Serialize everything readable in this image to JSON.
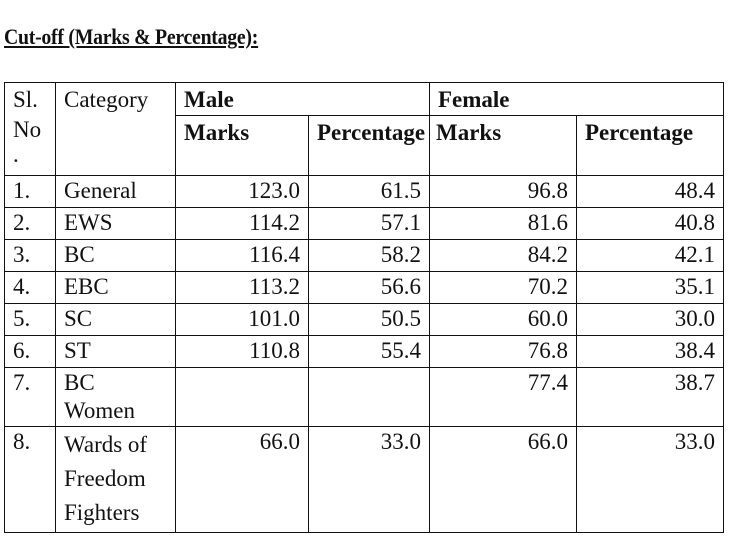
{
  "title": "Cut-off (Marks & Percentage):",
  "headers": {
    "sl_no": "Sl.\nNo\n.",
    "category": "Category",
    "male": "Male",
    "female": "Female",
    "marks": "Marks",
    "percentage": "Percentage"
  },
  "rows": [
    {
      "sl": "1.",
      "category": "General",
      "male_marks": "123.0",
      "male_pct": "61.5",
      "female_marks": "96.8",
      "female_pct": "48.4"
    },
    {
      "sl": "2.",
      "category": "EWS",
      "male_marks": "114.2",
      "male_pct": "57.1",
      "female_marks": "81.6",
      "female_pct": "40.8"
    },
    {
      "sl": "3.",
      "category": "BC",
      "male_marks": "116.4",
      "male_pct": "58.2",
      "female_marks": "84.2",
      "female_pct": "42.1"
    },
    {
      "sl": "4.",
      "category": "EBC",
      "male_marks": "113.2",
      "male_pct": "56.6",
      "female_marks": "70.2",
      "female_pct": "35.1"
    },
    {
      "sl": "5.",
      "category": "SC",
      "male_marks": "101.0",
      "male_pct": "50.5",
      "female_marks": "60.0",
      "female_pct": "30.0"
    },
    {
      "sl": "6.",
      "category": "ST",
      "male_marks": "110.8",
      "male_pct": "55.4",
      "female_marks": "76.8",
      "female_pct": "38.4"
    },
    {
      "sl": "7.",
      "category": "BC Women",
      "male_marks": "",
      "male_pct": "",
      "female_marks": "77.4",
      "female_pct": "38.7"
    },
    {
      "sl": "8.",
      "category": "Wards of Freedom Fighters",
      "category_lines": [
        "Wards of",
        "Freedom",
        "Fighters"
      ],
      "male_marks": "66.0",
      "male_pct": "33.0",
      "female_marks": "66.0",
      "female_pct": "33.0"
    }
  ]
}
